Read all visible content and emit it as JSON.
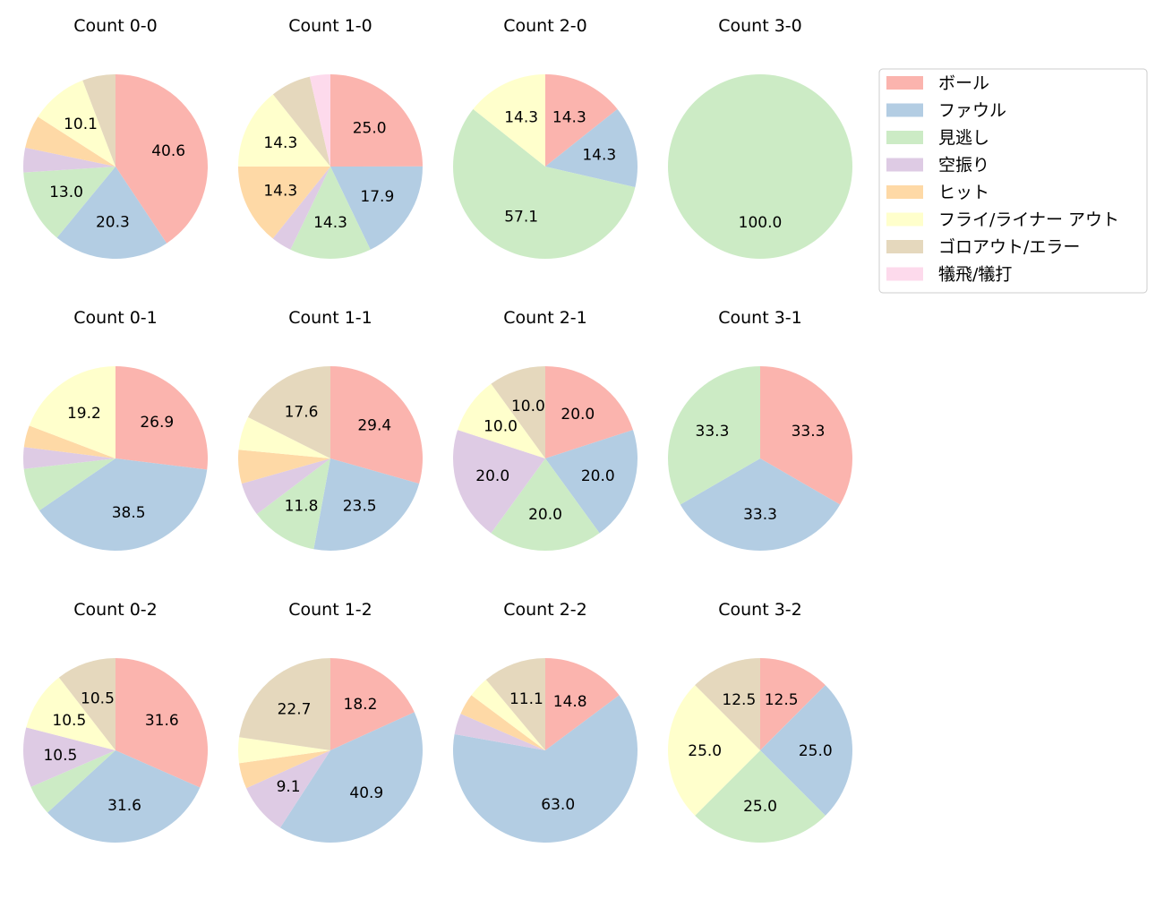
{
  "chart_data": {
    "type": "pie",
    "legend": {
      "placement": "top-right",
      "entries": [
        "ボール",
        "ファウル",
        "見逃し",
        "空振り",
        "ヒット",
        "フライ/ライナー アウト",
        "ゴロアウト/エラー",
        "犠飛/犠打"
      ],
      "colors": [
        "#fbb4ae",
        "#b3cde3",
        "#ccebc5",
        "#decbe4",
        "#fed9a6",
        "#ffffcc",
        "#e5d8bd",
        "#fddaec"
      ]
    },
    "label_threshold_percent": 9,
    "pies": [
      {
        "title": "Count 0-0",
        "values": [
          40.6,
          20.3,
          13.0,
          4.3,
          5.8,
          10.1,
          5.8,
          0
        ]
      },
      {
        "title": "Count 1-0",
        "values": [
          25.0,
          17.9,
          14.3,
          3.6,
          14.3,
          14.3,
          7.1,
          3.6
        ]
      },
      {
        "title": "Count 2-0",
        "values": [
          14.3,
          14.3,
          57.1,
          0,
          0,
          14.3,
          0,
          0
        ]
      },
      {
        "title": "Count 3-0",
        "values": [
          0,
          0,
          100.0,
          0,
          0,
          0,
          0,
          0
        ]
      },
      {
        "title": "Count 0-1",
        "values": [
          26.9,
          38.5,
          7.7,
          3.8,
          3.8,
          19.2,
          0,
          0
        ]
      },
      {
        "title": "Count 1-1",
        "values": [
          29.4,
          23.5,
          11.8,
          5.9,
          5.9,
          5.9,
          17.6,
          0
        ]
      },
      {
        "title": "Count 2-1",
        "values": [
          20.0,
          20.0,
          20.0,
          20.0,
          0,
          10.0,
          10.0,
          0
        ]
      },
      {
        "title": "Count 3-1",
        "values": [
          33.3,
          33.3,
          33.3,
          0,
          0,
          0,
          0,
          0
        ]
      },
      {
        "title": "Count 0-2",
        "values": [
          31.6,
          31.6,
          5.3,
          10.5,
          0,
          10.5,
          10.5,
          0
        ]
      },
      {
        "title": "Count 1-2",
        "values": [
          18.2,
          40.9,
          0,
          9.1,
          4.5,
          4.5,
          22.7,
          0
        ]
      },
      {
        "title": "Count 2-2",
        "values": [
          14.8,
          63.0,
          0,
          3.7,
          3.7,
          3.7,
          11.1,
          0
        ]
      },
      {
        "title": "Count 3-2",
        "values": [
          12.5,
          25.0,
          25.0,
          0,
          0,
          25.0,
          12.5,
          0
        ]
      }
    ]
  }
}
